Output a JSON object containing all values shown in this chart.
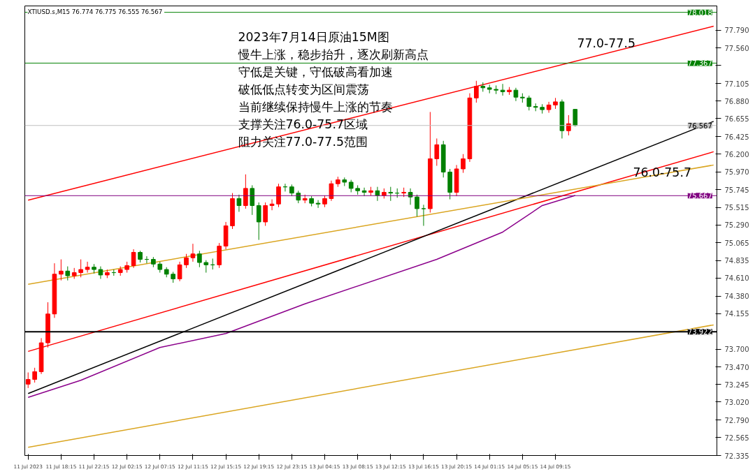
{
  "chart_data": {
    "type": "candlestick",
    "title": "2023年7月14日原油15M图",
    "subtitle": "XTIUSD.s,M15  76.774 76.775 76.555 76.567",
    "annotations": [
      "慢牛上涨，稳步抬升，逐次刷新高点",
      "守低是关键，守低破高看加速",
      "破低低点转变为区间震荡",
      "当前继续保持慢牛上涨的节奏",
      "支撑关注76.0-75.7区域",
      "阻力关注77.0-77.5范围",
      "77.0-77.5",
      "76.0-75.7"
    ],
    "categories": [
      "11 Jul 2023",
      null,
      null,
      null,
      null,
      "11 Jul 18:15",
      null,
      null,
      null,
      null,
      "11 Jul 22:15",
      null,
      null,
      null,
      null,
      "12 Jul 02:15",
      null,
      null,
      null,
      null,
      "12 Jul 07:15",
      null,
      null,
      null,
      null,
      "12 Jul 11:15",
      null,
      null,
      null,
      null,
      "12 Jul 15:15",
      null,
      null,
      null,
      null,
      "12 Jul 19:15",
      null,
      null,
      null,
      null,
      "12 Jul 23:15",
      null,
      null,
      null,
      null,
      "13 Jul 04:15",
      null,
      null,
      null,
      null,
      "13 Jul 08:15",
      null,
      null,
      null,
      null,
      "13 Jul 12:15",
      null,
      null,
      null,
      null,
      "13 Jul 16:15",
      null,
      null,
      null,
      null,
      "13 Jul 20:15",
      null,
      null,
      null,
      null,
      "14 Jul 01:15",
      null,
      null,
      null,
      null,
      "14 Jul 05:15",
      null,
      null,
      null,
      null,
      "14 Jul 09:15",
      null,
      null,
      null,
      null,
      null,
      null,
      null,
      null,
      null,
      null,
      null,
      null,
      null,
      null,
      null,
      null,
      null,
      null,
      null,
      null,
      null,
      null,
      null,
      null
    ],
    "ohlc": [
      [
        73.25,
        73.4,
        73.2,
        73.31
      ],
      [
        73.31,
        73.46,
        73.27,
        73.41
      ],
      [
        73.41,
        73.84,
        73.38,
        73.78
      ],
      [
        73.78,
        74.3,
        73.72,
        74.15
      ],
      [
        74.15,
        74.8,
        74.1,
        74.66
      ],
      [
        74.66,
        74.85,
        74.58,
        74.7
      ],
      [
        74.7,
        74.76,
        74.58,
        74.64
      ],
      [
        74.64,
        74.74,
        74.6,
        74.68
      ],
      [
        74.68,
        74.85,
        74.62,
        74.72
      ],
      [
        74.72,
        74.82,
        74.68,
        74.75
      ],
      [
        74.75,
        74.79,
        74.67,
        74.72
      ],
      [
        74.72,
        74.76,
        74.6,
        74.65
      ],
      [
        74.65,
        74.72,
        74.61,
        74.68
      ],
      [
        74.68,
        74.72,
        74.64,
        74.68
      ],
      [
        74.68,
        74.76,
        74.64,
        74.72
      ],
      [
        74.72,
        74.82,
        74.68,
        74.77
      ],
      [
        74.77,
        74.98,
        74.74,
        74.94
      ],
      [
        74.94,
        74.96,
        74.81,
        74.85
      ],
      [
        74.85,
        74.89,
        74.8,
        74.85
      ],
      [
        74.85,
        74.88,
        74.75,
        74.79
      ],
      [
        74.79,
        74.82,
        74.68,
        74.72
      ],
      [
        74.72,
        74.75,
        74.62,
        74.66
      ],
      [
        74.66,
        74.69,
        74.55,
        74.6
      ],
      [
        74.6,
        74.82,
        74.57,
        74.78
      ],
      [
        74.78,
        74.92,
        74.74,
        74.87
      ],
      [
        74.87,
        75.05,
        74.82,
        74.92
      ],
      [
        74.92,
        74.96,
        74.75,
        74.81
      ],
      [
        74.81,
        74.84,
        74.68,
        74.78
      ],
      [
        74.78,
        74.86,
        74.72,
        74.78
      ],
      [
        74.78,
        75.06,
        74.74,
        75.02
      ],
      [
        75.02,
        75.33,
        74.98,
        75.28
      ],
      [
        75.28,
        75.7,
        75.24,
        75.63
      ],
      [
        75.63,
        75.68,
        75.46,
        75.54
      ],
      [
        75.54,
        75.94,
        75.5,
        75.76
      ],
      [
        75.76,
        75.8,
        75.42,
        75.54
      ],
      [
        75.54,
        75.58,
        75.1,
        75.33
      ],
      [
        75.33,
        75.58,
        75.28,
        75.54
      ],
      [
        75.54,
        75.62,
        75.48,
        75.56
      ],
      [
        75.56,
        75.82,
        75.52,
        75.78
      ],
      [
        75.78,
        75.82,
        75.72,
        75.78
      ],
      [
        75.78,
        75.81,
        75.66,
        75.7
      ],
      [
        75.7,
        75.73,
        75.57,
        75.61
      ],
      [
        75.61,
        75.68,
        75.57,
        75.63
      ],
      [
        75.63,
        75.66,
        75.53,
        75.57
      ],
      [
        75.57,
        75.61,
        75.51,
        75.56
      ],
      [
        75.56,
        75.67,
        75.52,
        75.63
      ],
      [
        75.63,
        75.86,
        75.6,
        75.82
      ],
      [
        75.82,
        75.91,
        75.78,
        75.87
      ],
      [
        75.87,
        75.9,
        75.79,
        75.84
      ],
      [
        75.84,
        75.87,
        75.71,
        75.76
      ],
      [
        75.76,
        75.8,
        75.68,
        75.73
      ],
      [
        75.73,
        75.77,
        75.66,
        75.71
      ],
      [
        75.71,
        75.78,
        75.67,
        75.73
      ],
      [
        75.73,
        75.78,
        75.6,
        75.67
      ],
      [
        75.67,
        75.76,
        75.63,
        75.71
      ],
      [
        75.71,
        75.78,
        75.6,
        75.7
      ],
      [
        75.7,
        75.76,
        75.64,
        75.7
      ],
      [
        75.7,
        75.77,
        75.65,
        75.71
      ],
      [
        75.71,
        75.76,
        75.55,
        75.65
      ],
      [
        75.65,
        75.68,
        75.4,
        75.5
      ],
      [
        75.5,
        75.55,
        75.28,
        75.5
      ],
      [
        75.5,
        76.74,
        75.45,
        76.14
      ],
      [
        76.14,
        76.4,
        76.05,
        76.32
      ],
      [
        76.32,
        76.37,
        75.9,
        75.97
      ],
      [
        75.97,
        76.01,
        75.62,
        75.71
      ],
      [
        75.71,
        76.06,
        75.66,
        76.01
      ],
      [
        76.01,
        76.2,
        75.96,
        76.14
      ],
      [
        76.14,
        76.98,
        76.1,
        76.92
      ],
      [
        76.92,
        77.14,
        76.86,
        77.07
      ],
      [
        77.07,
        77.12,
        77.0,
        77.05
      ],
      [
        77.05,
        77.09,
        76.98,
        77.03
      ],
      [
        77.03,
        77.08,
        76.97,
        77.02
      ],
      [
        77.02,
        77.1,
        76.95,
        77.0
      ],
      [
        77.0,
        77.06,
        76.96,
        77.02
      ],
      [
        77.02,
        77.05,
        76.88,
        76.93
      ],
      [
        76.93,
        76.98,
        76.86,
        76.92
      ],
      [
        76.92,
        76.95,
        76.76,
        76.81
      ],
      [
        76.81,
        76.85,
        76.75,
        76.8
      ],
      [
        76.8,
        76.84,
        76.72,
        76.77
      ],
      [
        76.77,
        76.87,
        76.73,
        76.83
      ],
      [
        76.83,
        76.92,
        76.78,
        76.87
      ],
      [
        76.87,
        76.9,
        76.4,
        76.5
      ],
      [
        76.5,
        76.7,
        76.44,
        76.59
      ],
      [
        76.774,
        76.775,
        76.555,
        76.567
      ],
      null,
      null,
      null,
      null,
      null,
      null,
      null,
      null,
      null,
      null,
      null,
      null,
      null,
      null,
      null,
      null,
      null,
      null,
      null,
      null,
      null
    ],
    "colors": [
      "#ff0000",
      "#ff0000",
      "#ff0000",
      "#ff0000",
      "#ff0000",
      "#ff0000",
      "#008000",
      "#ff0000",
      "#ff0000",
      "#ff0000",
      "#008000",
      "#008000",
      "#ff0000",
      "#008000",
      "#ff0000",
      "#ff0000",
      "#ff0000",
      "#008000",
      "#008000",
      "#008000",
      "#008000",
      "#008000",
      "#008000",
      "#ff0000",
      "#ff0000",
      "#ff0000",
      "#008000",
      "#008000",
      "#008000",
      "#ff0000",
      "#ff0000",
      "#ff0000",
      "#008000",
      "#ff0000",
      "#008000",
      "#008000",
      "#ff0000",
      "#ff0000",
      "#ff0000",
      "#008000",
      "#008000",
      "#008000",
      "#ff0000",
      "#008000",
      "#008000",
      "#ff0000",
      "#ff0000",
      "#ff0000",
      "#008000",
      "#008000",
      "#008000",
      "#008000",
      "#ff0000",
      "#008000",
      "#ff0000",
      "#008000",
      "#008000",
      "#ff0000",
      "#008000",
      "#008000",
      "#008000",
      "#ff0000",
      "#ff0000",
      "#008000",
      "#008000",
      "#ff0000",
      "#ff0000",
      "#ff0000",
      "#ff0000",
      "#008000",
      "#008000",
      "#008000",
      "#008000",
      "#ff0000",
      "#008000",
      "#008000",
      "#008000",
      "#008000",
      "#008000",
      "#ff0000",
      "#ff0000",
      "#008000",
      "#ff0000",
      "#008000",
      null,
      null,
      null,
      null,
      null,
      null,
      null,
      null,
      null,
      null,
      null,
      null,
      null,
      null,
      null,
      null,
      null,
      null,
      null,
      null,
      null
    ],
    "series": [
      {
        "type": "line",
        "color": "#ff0000",
        "values": [
          75.61,
          null,
          null,
          null,
          null,
          null,
          null,
          null,
          null,
          null,
          null,
          null,
          null,
          null,
          null,
          null,
          null,
          null,
          null,
          null,
          null,
          null,
          null,
          null,
          null,
          null,
          null,
          null,
          null,
          null,
          null,
          null,
          null,
          null,
          null,
          null,
          null,
          null,
          null,
          null,
          null,
          null,
          null,
          null,
          null,
          null,
          null,
          null,
          null,
          null,
          null,
          null,
          null,
          null,
          null,
          null,
          null,
          null,
          null,
          null,
          null,
          null,
          null,
          null,
          null,
          null,
          null,
          null,
          null,
          null,
          null,
          null,
          null,
          null,
          null,
          null,
          null,
          null,
          null,
          null,
          null,
          null,
          null,
          null,
          null,
          null,
          null,
          null,
          null,
          null,
          null,
          null,
          null,
          null,
          null,
          null,
          null,
          null,
          null,
          null,
          null,
          null,
          null,
          null,
          77.84
        ]
      },
      {
        "type": "line",
        "color": "#ff0000",
        "values": [
          73.67,
          null,
          null,
          null,
          null,
          null,
          null,
          null,
          null,
          null,
          null,
          null,
          null,
          null,
          null,
          null,
          null,
          null,
          null,
          null,
          null,
          null,
          null,
          null,
          null,
          null,
          null,
          null,
          null,
          null,
          null,
          null,
          null,
          null,
          null,
          null,
          null,
          null,
          null,
          null,
          null,
          null,
          null,
          null,
          null,
          null,
          null,
          null,
          null,
          null,
          null,
          null,
          null,
          null,
          null,
          null,
          null,
          null,
          null,
          null,
          null,
          null,
          null,
          null,
          null,
          null,
          null,
          null,
          null,
          null,
          null,
          null,
          null,
          null,
          null,
          null,
          null,
          null,
          null,
          null,
          null,
          null,
          null,
          null,
          null,
          null,
          null,
          null,
          null,
          null,
          null,
          null,
          null,
          null,
          null,
          null,
          null,
          null,
          null,
          null,
          null,
          null,
          null,
          null,
          76.23
        ]
      },
      {
        "type": "line",
        "color": "#000000",
        "values": [
          73.13,
          null,
          null,
          null,
          null,
          null,
          null,
          null,
          null,
          null,
          null,
          null,
          null,
          null,
          null,
          null,
          null,
          null,
          null,
          null,
          null,
          null,
          null,
          null,
          null,
          null,
          null,
          null,
          null,
          null,
          null,
          null,
          null,
          null,
          null,
          null,
          null,
          null,
          null,
          null,
          null,
          null,
          null,
          null,
          null,
          null,
          null,
          null,
          null,
          null,
          null,
          null,
          null,
          null,
          null,
          null,
          null,
          null,
          null,
          null,
          null,
          null,
          null,
          null,
          null,
          null,
          null,
          null,
          null,
          null,
          null,
          null,
          null,
          null,
          null,
          null,
          null,
          null,
          null,
          null,
          null,
          null,
          null,
          null,
          null,
          null,
          null,
          null,
          null,
          null,
          null,
          null,
          null,
          null,
          null,
          null,
          null,
          null,
          null,
          null,
          null,
          null,
          null,
          null,
          76.62
        ]
      },
      {
        "type": "line",
        "color": "#daa520",
        "values": [
          74.53,
          null,
          null,
          null,
          null,
          null,
          null,
          null,
          null,
          null,
          null,
          null,
          null,
          null,
          null,
          null,
          null,
          null,
          null,
          null,
          null,
          null,
          null,
          null,
          null,
          null,
          null,
          null,
          null,
          null,
          null,
          null,
          null,
          null,
          null,
          null,
          null,
          null,
          null,
          null,
          null,
          null,
          null,
          null,
          null,
          null,
          null,
          null,
          null,
          null,
          null,
          null,
          null,
          null,
          null,
          null,
          null,
          null,
          null,
          null,
          null,
          null,
          null,
          null,
          null,
          null,
          null,
          null,
          null,
          null,
          null,
          null,
          null,
          null,
          null,
          null,
          null,
          null,
          null,
          null,
          null,
          null,
          null,
          null,
          null,
          null,
          null,
          null,
          null,
          null,
          null,
          null,
          null,
          null,
          null,
          null,
          null,
          null,
          null,
          null,
          null,
          null,
          null,
          null,
          76.06
        ]
      },
      {
        "type": "line",
        "color": "#daa520",
        "values": [
          72.44,
          null,
          null,
          null,
          null,
          null,
          null,
          null,
          null,
          null,
          null,
          null,
          null,
          null,
          null,
          null,
          null,
          null,
          null,
          null,
          null,
          null,
          null,
          null,
          null,
          null,
          null,
          null,
          null,
          null,
          null,
          null,
          null,
          null,
          null,
          null,
          null,
          null,
          null,
          null,
          null,
          null,
          null,
          null,
          null,
          null,
          null,
          null,
          null,
          null,
          null,
          null,
          null,
          null,
          null,
          null,
          null,
          null,
          null,
          null,
          null,
          null,
          null,
          null,
          null,
          null,
          null,
          null,
          null,
          null,
          null,
          null,
          null,
          null,
          null,
          null,
          null,
          null,
          null,
          null,
          null,
          null,
          null,
          null,
          null,
          null,
          null,
          null,
          null,
          null,
          null,
          null,
          null,
          null,
          null,
          null,
          null,
          null,
          null,
          null,
          null,
          null,
          null,
          null,
          74.01
        ]
      },
      {
        "type": "line",
        "color": "#8b008b",
        "values": [
          73.08,
          null,
          null,
          null,
          null,
          null,
          null,
          null,
          73.3,
          null,
          null,
          null,
          null,
          null,
          null,
          null,
          null,
          null,
          null,
          null,
          73.72,
          null,
          null,
          null,
          null,
          null,
          null,
          null,
          null,
          null,
          73.9,
          null,
          null,
          null,
          null,
          null,
          null,
          null,
          null,
          null,
          null,
          null,
          74.28,
          null,
          null,
          null,
          null,
          null,
          null,
          null,
          null,
          null,
          null,
          null,
          null,
          null,
          null,
          null,
          null,
          null,
          null,
          null,
          74.85,
          null,
          null,
          null,
          null,
          null,
          null,
          null,
          null,
          null,
          75.2,
          null,
          null,
          null,
          null,
          null,
          75.54,
          null,
          null,
          null,
          null,
          75.67,
          null,
          null,
          null,
          null,
          null,
          null,
          null,
          null,
          null,
          null,
          null,
          null,
          null,
          null,
          null,
          null,
          null,
          null,
          null,
          null,
          null
        ]
      }
    ],
    "ref_lines": [
      {
        "axis": "y",
        "value": 78.018,
        "label": "78.018",
        "color": "#008000"
      },
      {
        "axis": "y",
        "value": 77.367,
        "label": "77.367",
        "color": "#008000"
      },
      {
        "axis": "y",
        "value": 76.567,
        "label": "76.567",
        "color": "#c0c0c0"
      },
      {
        "axis": "y",
        "value": 75.667,
        "label": "75.667",
        "color": "#800080"
      },
      {
        "axis": "y",
        "value": 73.922,
        "label": "73.922",
        "color": "#000000"
      }
    ],
    "ylim": [
      72.335,
      78.1
    ],
    "yticks": [
      72.335,
      72.565,
      {
        "value": 72.79,
        "label": "72.790"
      },
      {
        "value": 73.02,
        "label": "73.020"
      },
      73.245,
      {
        "value": 73.47,
        "label": "73.470"
      },
      {
        "value": 73.7,
        "label": "73.700"
      },
      74.155,
      {
        "value": 74.38,
        "label": "74.380"
      },
      {
        "value": 74.61,
        "label": "74.610"
      },
      74.835,
      75.065,
      {
        "value": 75.29,
        "label": "75.290"
      },
      75.515,
      75.745,
      {
        "value": 75.97,
        "label": "75.970"
      },
      {
        "value": 76.2,
        "label": "76.200"
      },
      76.425,
      76.655,
      {
        "value": 76.88,
        "label": "76.880"
      },
      77.105,
      {
        "value": 77.335,
        "label": null
      },
      {
        "value": 77.56,
        "label": "77.560"
      },
      {
        "value": 77.79,
        "label": "77.790"
      }
    ],
    "grid": false
  }
}
